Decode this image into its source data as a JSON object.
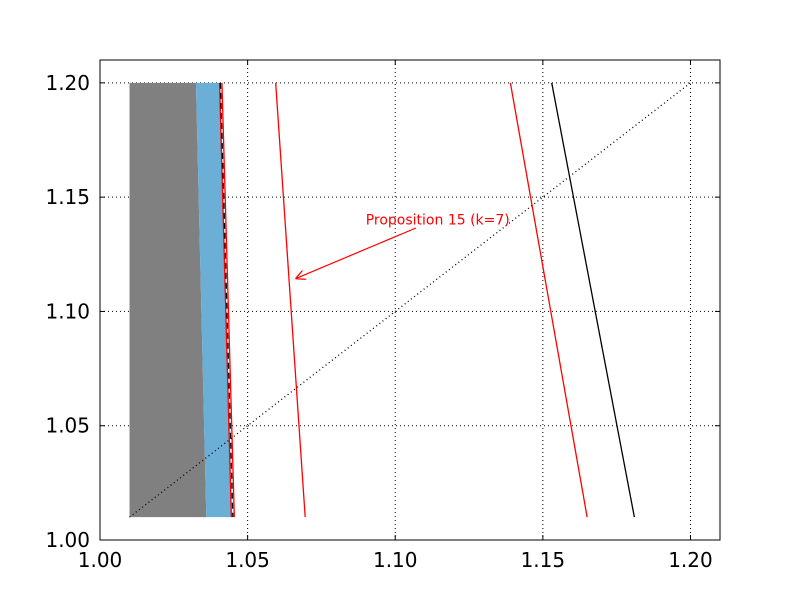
{
  "chart_data": {
    "type": "line",
    "title": "",
    "xlabel": "",
    "ylabel": "",
    "xlim": [
      1.0,
      1.21
    ],
    "ylim": [
      1.0,
      1.21
    ],
    "grid": true,
    "x_ticks": [
      1.0,
      1.05,
      1.1,
      1.15,
      1.2
    ],
    "x_tick_labels": [
      "1.00",
      "1.05",
      "1.10",
      "1.15",
      "1.20"
    ],
    "y_ticks": [
      1.0,
      1.05,
      1.1,
      1.15,
      1.2
    ],
    "y_tick_labels": [
      "1.00",
      "1.05",
      "1.10",
      "1.15",
      "1.20"
    ],
    "regions": [
      {
        "color": "#808080",
        "points": [
          [
            1.01,
            1.01
          ],
          [
            1.036,
            1.01
          ],
          [
            1.0325,
            1.2
          ],
          [
            1.01,
            1.2
          ]
        ]
      },
      {
        "color": "#6baed6",
        "points": [
          [
            1.036,
            1.01
          ],
          [
            1.0445,
            1.01
          ],
          [
            1.0405,
            1.2
          ],
          [
            1.0325,
            1.2
          ]
        ]
      }
    ],
    "series": [
      {
        "color": "#ff0000",
        "style": "solid",
        "points": [
          [
            1.0405,
            1.2
          ],
          [
            1.0445,
            1.01
          ]
        ]
      },
      {
        "color": "#000000",
        "style": "dashed",
        "points": [
          [
            1.0408,
            1.2
          ],
          [
            1.045,
            1.01
          ]
        ]
      },
      {
        "color": "#ff0000",
        "style": "solid",
        "points": [
          [
            1.0413,
            1.2
          ],
          [
            1.0455,
            1.01
          ]
        ]
      },
      {
        "color": "#ff0000",
        "style": "solid",
        "points": [
          [
            1.0595,
            1.2
          ],
          [
            1.0695,
            1.01
          ]
        ]
      },
      {
        "color": "#ff0000",
        "style": "solid",
        "points": [
          [
            1.139,
            1.2
          ],
          [
            1.165,
            1.01
          ]
        ]
      },
      {
        "color": "#000000",
        "style": "solid",
        "points": [
          [
            1.153,
            1.2
          ],
          [
            1.181,
            1.01
          ]
        ]
      },
      {
        "color": "#000000",
        "style": "dotted",
        "points": [
          [
            1.01,
            1.01
          ],
          [
            1.2,
            1.2
          ]
        ]
      }
    ],
    "annotations": [
      {
        "text": "Proposition 15 (k=7)",
        "color": "#ff0000",
        "text_at": [
          1.09,
          1.138
        ],
        "arrow_from": [
          1.107,
          1.1365
        ],
        "arrow_to": [
          1.0665,
          1.1145
        ]
      }
    ]
  }
}
